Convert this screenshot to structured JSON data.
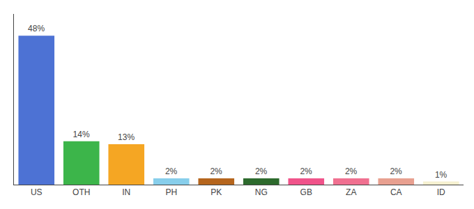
{
  "chart_data": {
    "type": "bar",
    "categories": [
      "US",
      "OTH",
      "IN",
      "PH",
      "PK",
      "NG",
      "GB",
      "ZA",
      "CA",
      "ID"
    ],
    "values": [
      48,
      14,
      13,
      2,
      2,
      2,
      2,
      2,
      2,
      1
    ],
    "value_labels": [
      "48%",
      "14%",
      "13%",
      "2%",
      "2%",
      "2%",
      "2%",
      "2%",
      "2%",
      "1%"
    ],
    "data_labels": true,
    "colors": [
      "#4d72d4",
      "#3cb54a",
      "#f5a623",
      "#87ceeb",
      "#b5651d",
      "#2d6a2d",
      "#f0538a",
      "#f07090",
      "#e8a090",
      "#f5f0d0"
    ],
    "ylim": [
      0,
      55
    ],
    "grid": false,
    "tick_labels": "x"
  }
}
